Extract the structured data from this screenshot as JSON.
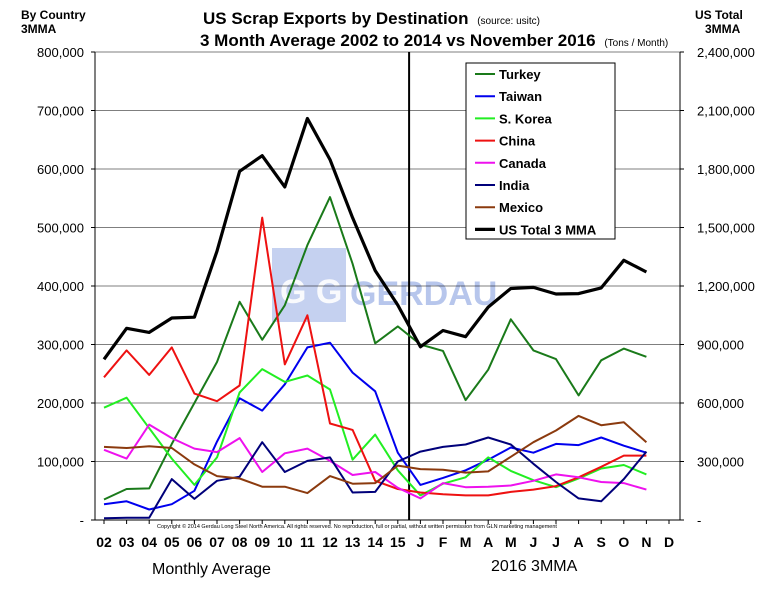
{
  "header": {
    "title_line1": "US Scrap Exports by Destination",
    "source_note": "(source: usitc)",
    "title_line2": "3 Month Average 2002 to 2014 vs November 2016",
    "units_note": "(Tons / Month)",
    "left_axis_title_line1": "By Country",
    "left_axis_title_line2": "3MMA",
    "right_axis_title_line1": "US Total",
    "right_axis_title_line2": "3MMA"
  },
  "footer": {
    "copyright": "Copyright © 2014 Gerdau Long Steel North America. All rights reserved. No reproduction, full or partial, without written permission from GLN marketing management",
    "left_section_label": "Monthly Average",
    "right_section_label": "2016  3MMA"
  },
  "watermark": {
    "text": "GERDAU",
    "logo_letters": "G G"
  },
  "colors": {
    "Turkey": "#1a7a1a",
    "Taiwan": "#0000ee",
    "S. Korea": "#22ee22",
    "China": "#ee1111",
    "Canada": "#ee11ee",
    "India": "#00007a",
    "Mexico": "#8b3a0e",
    "US Total 3 MMA": "#000000",
    "watermark": "#9fb3e6"
  },
  "chart_data": {
    "type": "line",
    "categories": [
      "02",
      "03",
      "04",
      "05",
      "06",
      "07",
      "08",
      "09",
      "10",
      "11",
      "12",
      "13",
      "14",
      "15",
      "J",
      "F",
      "M",
      "A",
      "M",
      "J",
      "J",
      "A",
      "S",
      "O",
      "N",
      "D"
    ],
    "left_axis": {
      "label": "By Country 3MMA",
      "ylim": [
        0,
        800000
      ],
      "ticks": [
        0,
        100000,
        200000,
        300000,
        400000,
        500000,
        600000,
        700000,
        800000
      ],
      "tick_labels": [
        "-",
        "100,000",
        "200,000",
        "300,000",
        "400,000",
        "500,000",
        "600,000",
        "700,000",
        "800,000"
      ]
    },
    "right_axis": {
      "label": "US Total 3MMA",
      "ylim": [
        0,
        2400000
      ],
      "ticks": [
        0,
        300000,
        600000,
        900000,
        1200000,
        1500000,
        1800000,
        2100000,
        2400000
      ],
      "tick_labels": [
        "-",
        "300,000",
        "600,000",
        "900,000",
        "1,200,000",
        "1,500,000",
        "1,800,000",
        "2,100,000",
        "2,400,000"
      ]
    },
    "divider_between": [
      "15",
      "J"
    ],
    "legend_position": "top-right",
    "series": [
      {
        "name": "Turkey",
        "axis": "left",
        "values": [
          35000,
          53000,
          54000,
          130000,
          200000,
          270000,
          373000,
          308000,
          367000,
          470000,
          552000,
          438000,
          302000,
          331000,
          300000,
          289000,
          205000,
          257000,
          343000,
          290000,
          275000,
          213000,
          273000,
          293000,
          279000,
          null
        ]
      },
      {
        "name": "Taiwan",
        "axis": "left",
        "values": [
          27000,
          32000,
          18000,
          27000,
          50000,
          134000,
          208000,
          187000,
          232000,
          295000,
          303000,
          252000,
          220000,
          115000,
          60000,
          72000,
          85000,
          103000,
          124000,
          115000,
          130000,
          128000,
          141000,
          127000,
          115000,
          null
        ]
      },
      {
        "name": "S. Korea",
        "axis": "left",
        "values": [
          192000,
          209000,
          157000,
          105000,
          60000,
          107000,
          218000,
          258000,
          236000,
          247000,
          223000,
          103000,
          146000,
          85000,
          42000,
          62000,
          73000,
          107000,
          84000,
          68000,
          56000,
          71000,
          88000,
          94000,
          78000,
          null
        ]
      },
      {
        "name": "China",
        "axis": "left",
        "values": [
          244000,
          290000,
          248000,
          295000,
          216000,
          203000,
          230000,
          517000,
          266000,
          350000,
          165000,
          154000,
          67000,
          53000,
          47000,
          44000,
          42000,
          42000,
          48000,
          52000,
          58000,
          73000,
          91000,
          110000,
          110000,
          null
        ]
      },
      {
        "name": "Canada",
        "axis": "left",
        "values": [
          120000,
          105000,
          163000,
          140000,
          122000,
          116000,
          140000,
          82000,
          114000,
          122000,
          101000,
          77000,
          82000,
          55000,
          37000,
          63000,
          56000,
          57000,
          59000,
          67000,
          78000,
          73000,
          65000,
          63000,
          52000,
          null
        ]
      },
      {
        "name": "India",
        "axis": "left",
        "values": [
          3000,
          4000,
          4000,
          70000,
          36000,
          67000,
          74000,
          133000,
          82000,
          101000,
          107000,
          47000,
          48000,
          100000,
          117000,
          125000,
          129000,
          141000,
          129000,
          96000,
          65000,
          37000,
          32000,
          70000,
          117000,
          null
        ]
      },
      {
        "name": "Mexico",
        "axis": "left",
        "values": [
          125000,
          123000,
          126000,
          123000,
          95000,
          75000,
          71000,
          57000,
          57000,
          46000,
          75000,
          62000,
          63000,
          93000,
          87000,
          86000,
          81000,
          83000,
          108000,
          133000,
          153000,
          178000,
          162000,
          167000,
          133000,
          null
        ]
      },
      {
        "name": "US Total 3 MMA",
        "axis": "right",
        "values": [
          824000,
          983000,
          962000,
          1036000,
          1040000,
          1379000,
          1788000,
          1868000,
          1708000,
          2059000,
          1848000,
          1550000,
          1279000,
          1102000,
          888000,
          972000,
          940000,
          1092000,
          1187000,
          1193000,
          1159000,
          1161000,
          1190000,
          1332000,
          1272000,
          null
        ]
      }
    ]
  }
}
